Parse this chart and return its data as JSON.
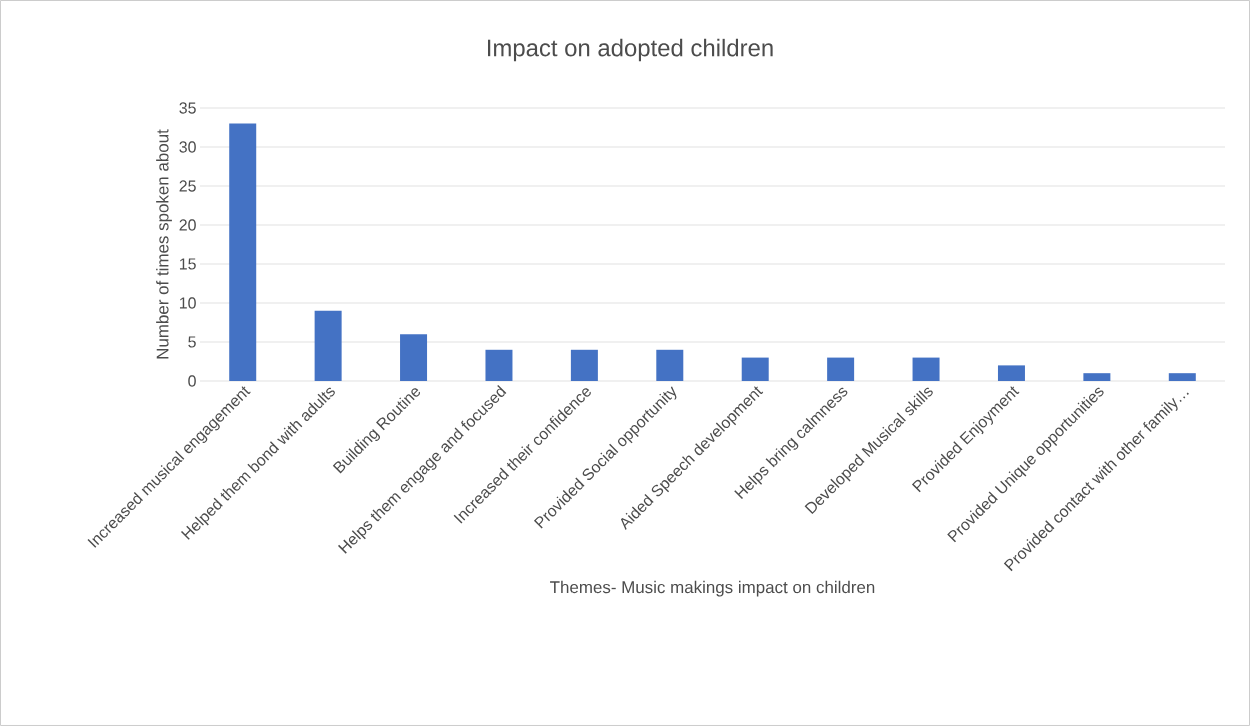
{
  "chart_data": {
    "type": "bar",
    "title": "Impact on adopted children",
    "xlabel": "Themes- Music makings impact on children",
    "ylabel": "Number of times spoken about",
    "categories": [
      "Increased musical engagement",
      "Helped them bond with adults",
      "Building Routine",
      "Helps them engage and focused",
      "Increased their confidence",
      "Provided Social opportunity",
      "Aided Speech development",
      "Helps bring calmness",
      "Developed Musical skills",
      "Provided Enjoyment",
      "Provided Unique opportunities",
      "Provided contact with other family…"
    ],
    "values": [
      33,
      9,
      6,
      4,
      4,
      4,
      3,
      3,
      3,
      2,
      1,
      1
    ],
    "color": "#4472c4",
    "ylim": [
      0,
      35
    ],
    "yticks": [
      0,
      5,
      10,
      15,
      20,
      25,
      30,
      35
    ],
    "grid": "y"
  }
}
